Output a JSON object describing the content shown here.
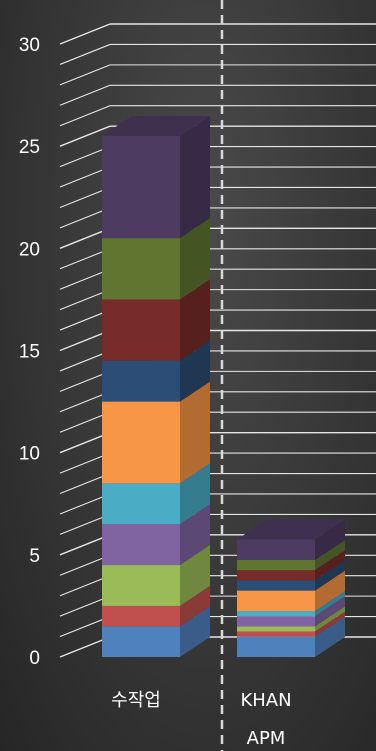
{
  "chart_data": {
    "type": "bar",
    "stacked": true,
    "three_d": true,
    "categories": [
      "수작업",
      "KHAN\nAPM"
    ],
    "ylim": [
      0,
      30
    ],
    "yticks": [
      0,
      5,
      10,
      15,
      20,
      25,
      30
    ],
    "grid": true,
    "series": [
      {
        "color": "#4f81bd",
        "values": [
          1.5,
          1.0
        ]
      },
      {
        "color": "#c0504d",
        "values": [
          1.0,
          0.25
        ]
      },
      {
        "color": "#9bbb59",
        "values": [
          2.0,
          0.25
        ]
      },
      {
        "color": "#8064a2",
        "values": [
          2.0,
          0.5
        ]
      },
      {
        "color": "#4bacc6",
        "values": [
          2.0,
          0.25
        ]
      },
      {
        "color": "#f79646",
        "values": [
          4.0,
          1.0
        ]
      },
      {
        "color": "#2c4d75",
        "values": [
          2.0,
          0.5
        ]
      },
      {
        "color": "#772c2a",
        "values": [
          3.0,
          0.5
        ]
      },
      {
        "color": "#5f7530",
        "values": [
          3.0,
          0.5
        ]
      },
      {
        "color": "#4d3b62",
        "values": [
          5.0,
          1.0
        ]
      }
    ]
  }
}
